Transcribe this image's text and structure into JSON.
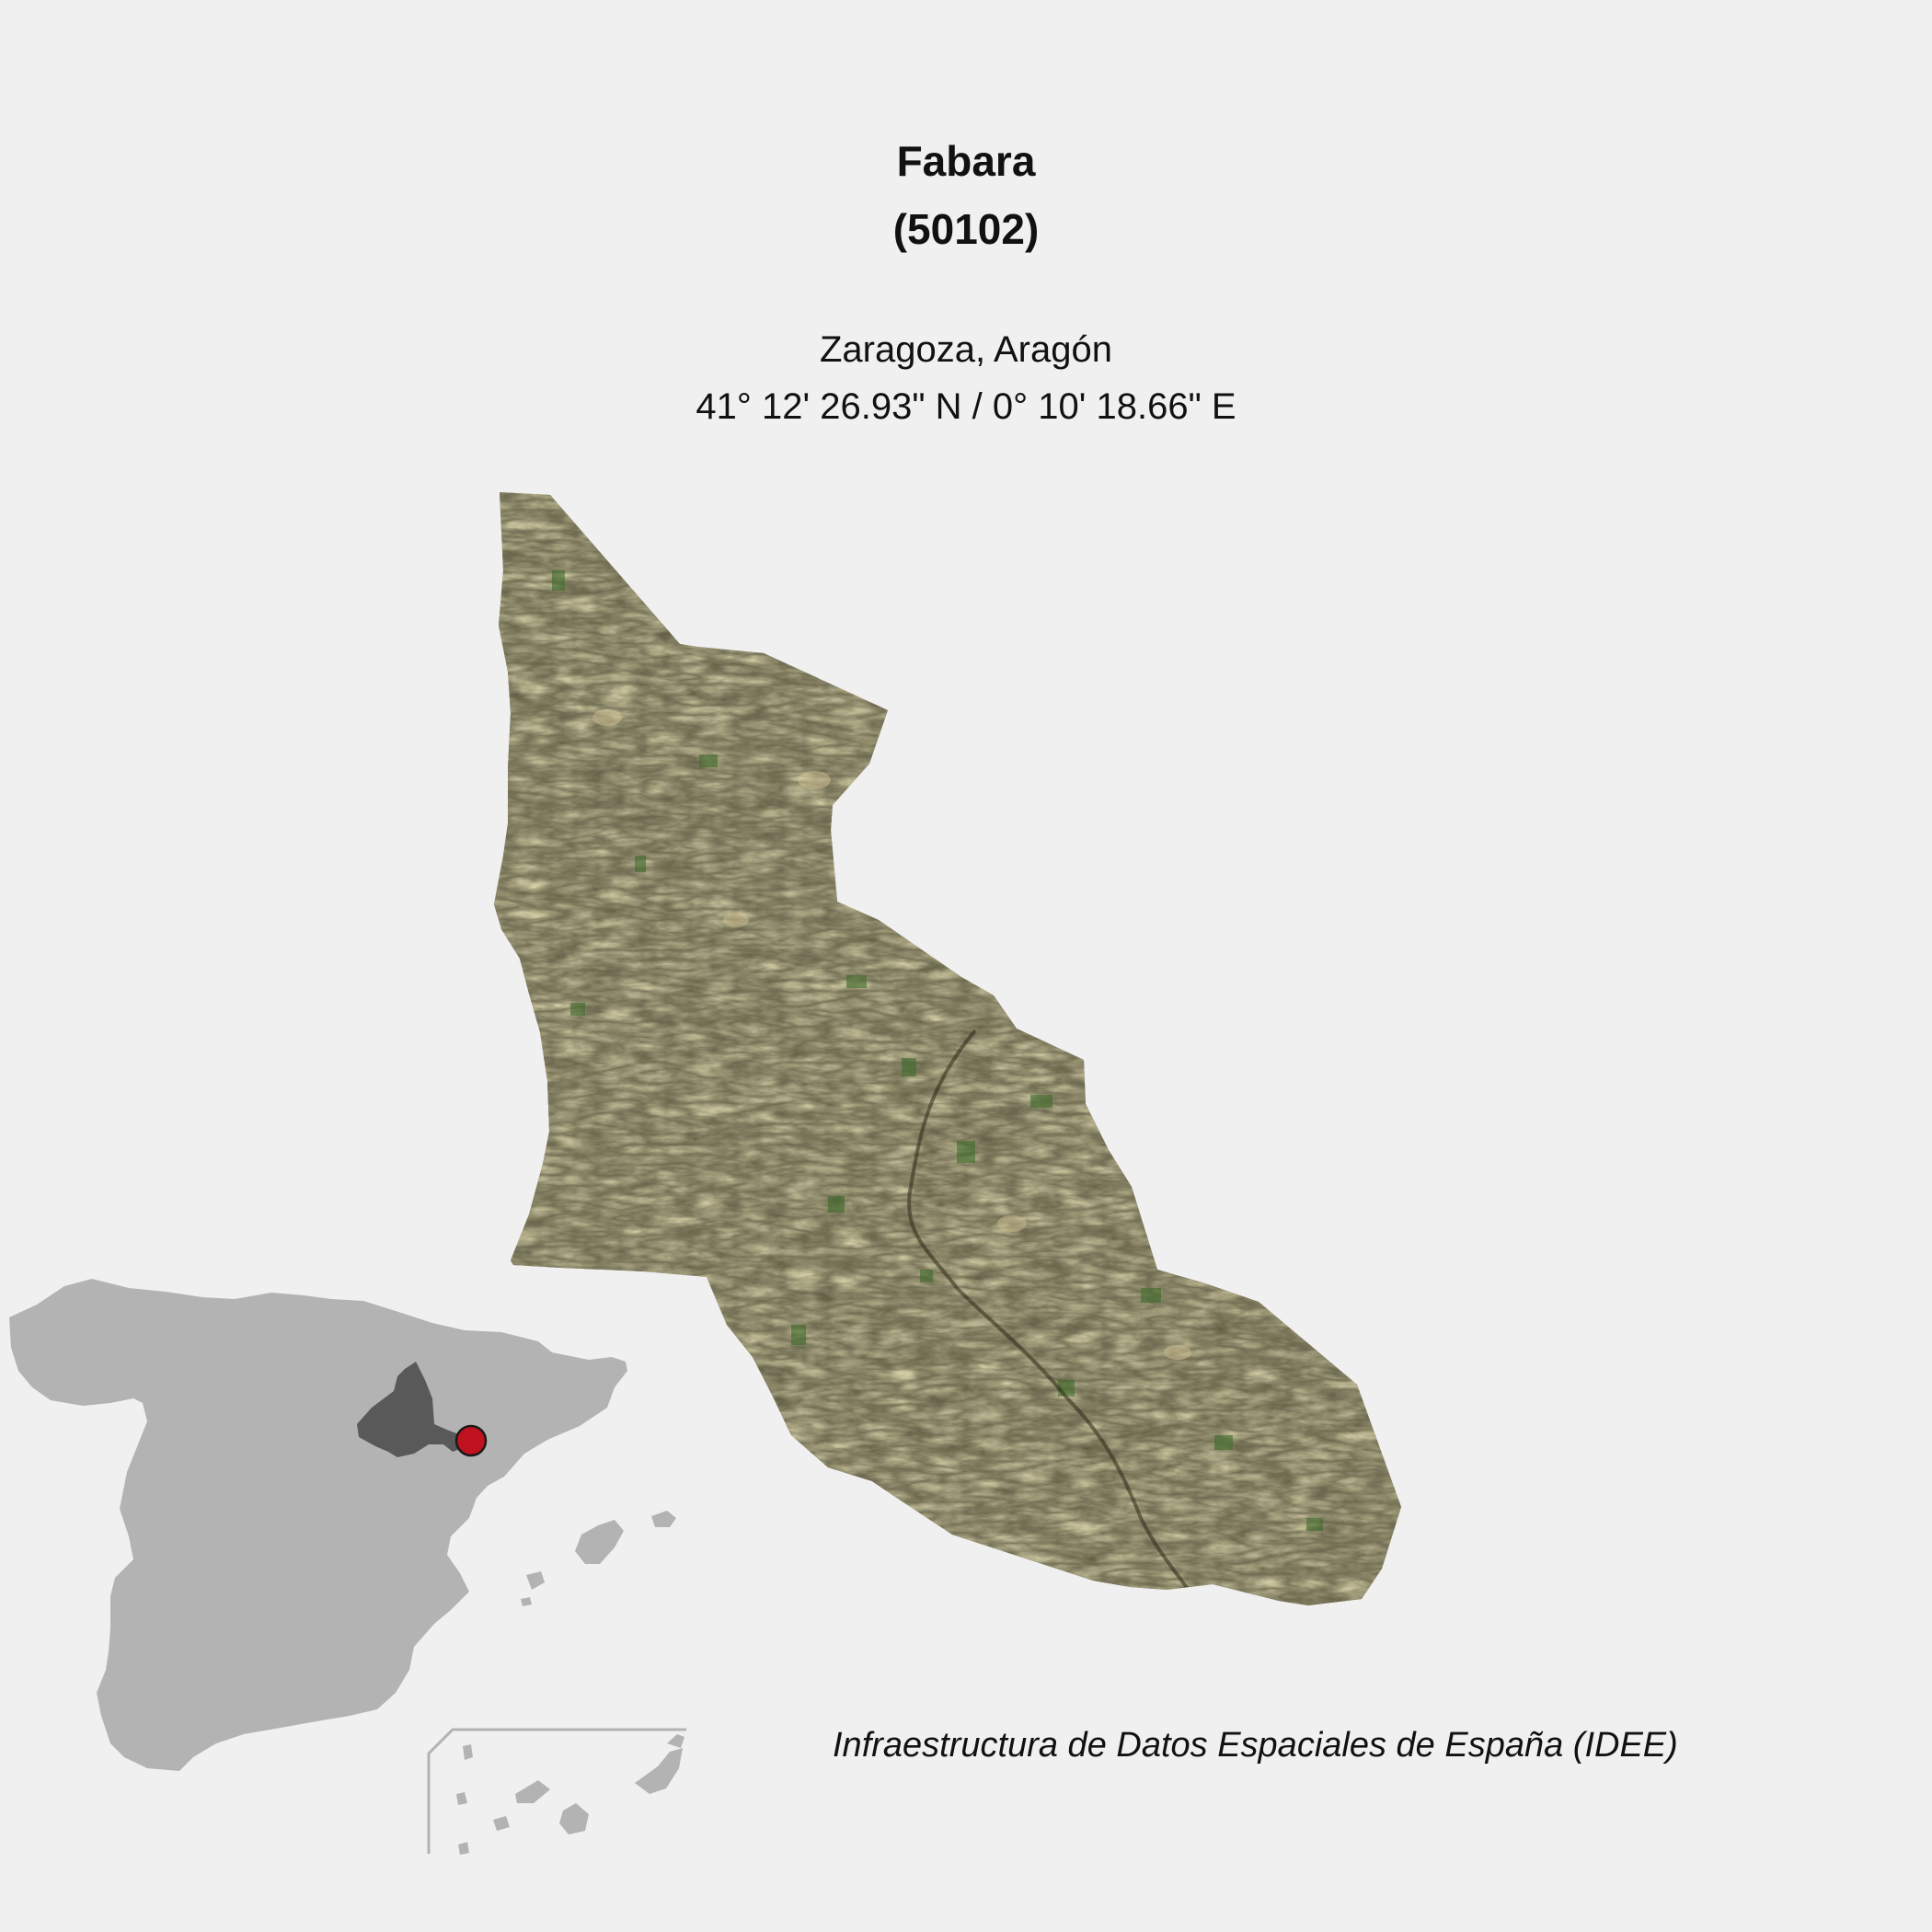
{
  "map": {
    "title": "Fabara",
    "code": "(50102)",
    "region": "Zaragoza, Aragón",
    "coordinates": "41° 12' 26.93\" N / 0° 10' 18.66\" E",
    "source": "Infraestructura de Datos Espaciales de España (IDEE)"
  },
  "colors": {
    "background": "#f0f0f0",
    "spain_fill": "#b3b3b3",
    "province_fill": "#595959",
    "marker_fill": "#c0111f",
    "terrain_base": "#5a5233"
  }
}
